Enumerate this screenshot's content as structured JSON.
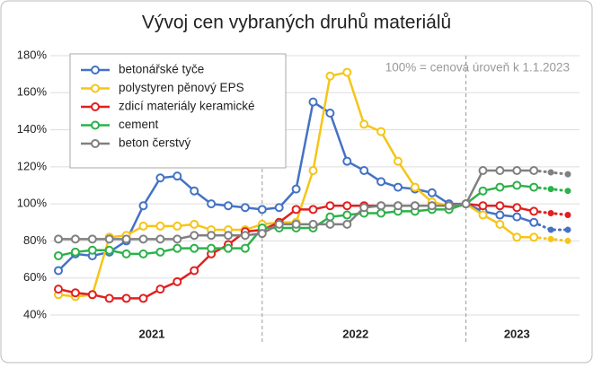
{
  "chart_data": {
    "type": "line",
    "title": "Vývoj cen vybraných druhů materiálů",
    "annotation": "100% = cenová úroveň k 1.1.2023",
    "categories": [
      null,
      null,
      null,
      null,
      null,
      null,
      null,
      null,
      null,
      null,
      null,
      null,
      null,
      null,
      null,
      null,
      null,
      null,
      null,
      null,
      null,
      null,
      null,
      null,
      null,
      null,
      null,
      null,
      null,
      null,
      null
    ],
    "x_groups": [
      {
        "label": "2021",
        "count": 12
      },
      {
        "label": "2022",
        "count": 12
      },
      {
        "label": "2023",
        "count": 7
      }
    ],
    "dotted_from": 28,
    "ylim": [
      40,
      180
    ],
    "yticks": [
      {
        "value": 40,
        "label": "40%"
      },
      {
        "value": 60,
        "label": "60%"
      },
      {
        "value": 80,
        "label": "80%"
      },
      {
        "value": 100,
        "label": "100%"
      },
      {
        "value": 120,
        "label": "120%"
      },
      {
        "value": 140,
        "label": "140%"
      },
      {
        "value": 160,
        "label": "160%"
      },
      {
        "value": 180,
        "label": "180%"
      }
    ],
    "grid": true,
    "legend": "upper left",
    "series": [
      {
        "name": "betonářské tyče",
        "color": "#4472c4",
        "values": [
          64,
          73,
          72,
          74,
          80,
          99,
          114,
          115,
          107,
          100,
          99,
          98,
          97,
          98,
          108,
          155,
          149,
          123,
          118,
          112,
          109,
          108,
          106,
          100,
          100,
          96,
          94,
          93,
          90,
          86,
          86
        ]
      },
      {
        "name": "polystyren pěnový EPS",
        "color": "#f5c518",
        "values": [
          51,
          50,
          51,
          82,
          83,
          88,
          88,
          88,
          89,
          86,
          86,
          86,
          89,
          90,
          90,
          118,
          169,
          171,
          143,
          139,
          123,
          109,
          101,
          99,
          100,
          94,
          89,
          82,
          82,
          81,
          80
        ]
      },
      {
        "name": "zdicí materiály keramické",
        "color": "#e02020",
        "values": [
          54,
          52,
          51,
          49,
          49,
          49,
          54,
          58,
          64,
          73,
          78,
          85,
          86,
          90,
          97,
          97,
          99,
          99,
          99,
          99,
          99,
          99,
          99,
          99,
          100,
          99,
          99,
          98,
          96,
          95,
          94
        ]
      },
      {
        "name": "cement",
        "color": "#2db14a",
        "values": [
          72,
          74,
          75,
          75,
          73,
          73,
          74,
          76,
          76,
          76,
          76,
          76,
          87,
          87,
          87,
          87,
          93,
          94,
          95,
          95,
          96,
          96,
          97,
          97,
          100,
          107,
          109,
          110,
          109,
          108,
          107
        ]
      },
      {
        "name": "beton čerstvý",
        "color": "#808080",
        "values": [
          81,
          81,
          81,
          81,
          81,
          81,
          81,
          81,
          83,
          83,
          83,
          83,
          84,
          89,
          89,
          89,
          89,
          89,
          98,
          99,
          99,
          99,
          99,
          99,
          100,
          118,
          118,
          118,
          118,
          117,
          116
        ]
      }
    ]
  }
}
